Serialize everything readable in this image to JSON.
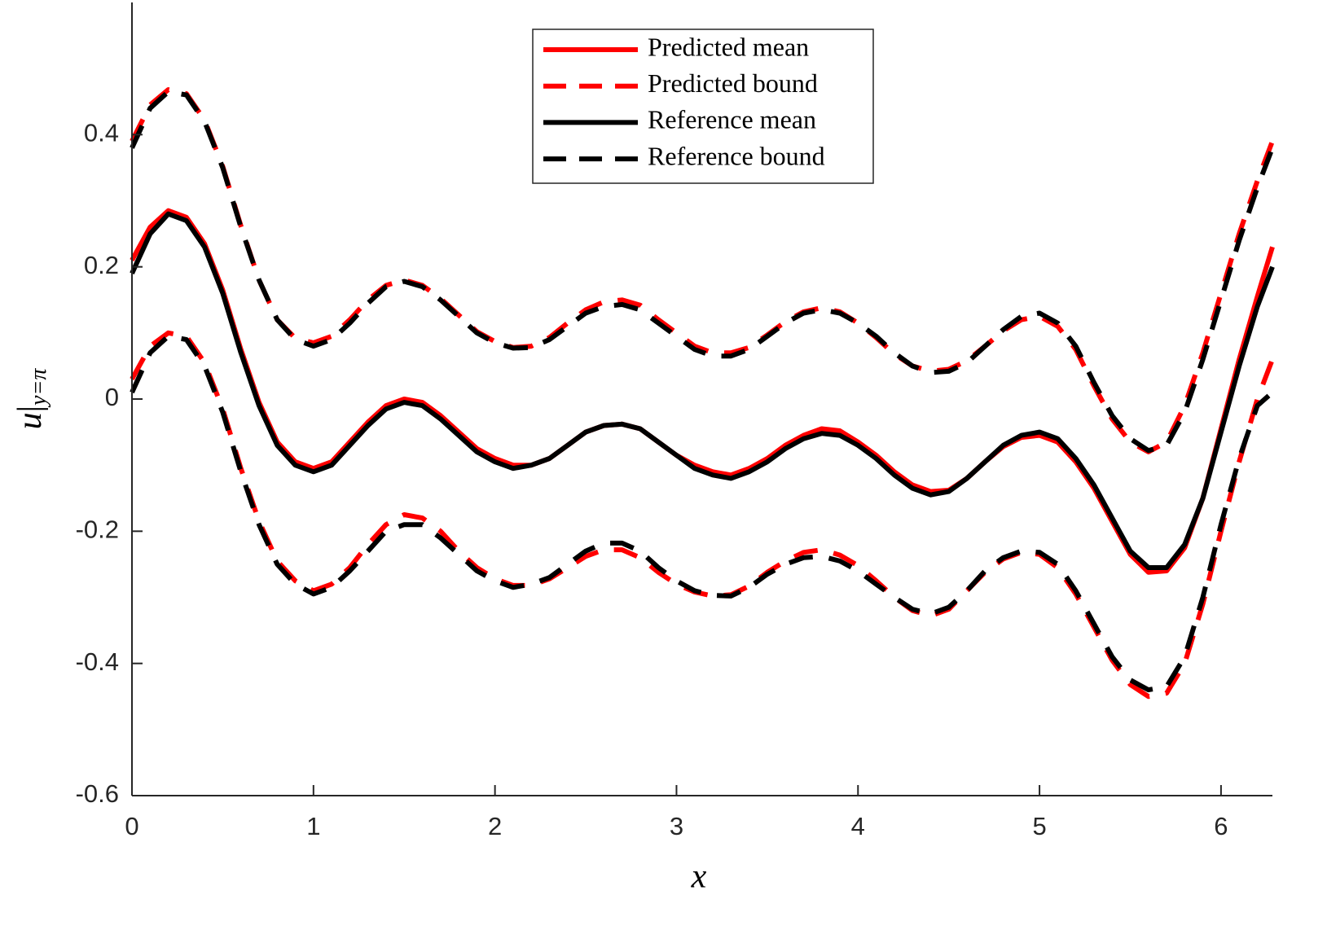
{
  "chart_data": {
    "type": "line",
    "xlabel": "x",
    "ylabel": "u",
    "ylabel_subscript": "y=π",
    "xlim": [
      0,
      6.2832
    ],
    "ylim": [
      -0.6,
      0.6
    ],
    "xticks": [
      0,
      1,
      2,
      3,
      4,
      5,
      6
    ],
    "yticks": [
      -0.6,
      -0.4,
      -0.2,
      0,
      0.2,
      0.4
    ],
    "grid": false,
    "legend": "top-center",
    "x": [
      0,
      0.1,
      0.2,
      0.3,
      0.4,
      0.5,
      0.6,
      0.7,
      0.8,
      0.9,
      1,
      1.1,
      1.2,
      1.3,
      1.4,
      1.5,
      1.6,
      1.7,
      1.8,
      1.9,
      2,
      2.1,
      2.2,
      2.3,
      2.4,
      2.5,
      2.6,
      2.7,
      2.8,
      2.9,
      3,
      3.1,
      3.2,
      3.3,
      3.4,
      3.5,
      3.6,
      3.7,
      3.8,
      3.9,
      4,
      4.1,
      4.2,
      4.3,
      4.4,
      4.5,
      4.6,
      4.7,
      4.8,
      4.9,
      5,
      5.1,
      5.2,
      5.3,
      5.4,
      5.5,
      5.6,
      5.7,
      5.8,
      5.9,
      6,
      6.1,
      6.2,
      6.2832
    ],
    "series": [
      {
        "name": "Predicted mean",
        "color": "#ff0000",
        "dashed": false,
        "values": [
          0.21,
          0.26,
          0.285,
          0.275,
          0.235,
          0.165,
          0.075,
          -0.005,
          -0.065,
          -0.095,
          -0.105,
          -0.095,
          -0.065,
          -0.035,
          -0.01,
          0.0,
          -0.005,
          -0.025,
          -0.05,
          -0.075,
          -0.09,
          -0.1,
          -0.1,
          -0.09,
          -0.07,
          -0.05,
          -0.04,
          -0.038,
          -0.045,
          -0.065,
          -0.085,
          -0.1,
          -0.11,
          -0.115,
          -0.105,
          -0.09,
          -0.07,
          -0.055,
          -0.045,
          -0.048,
          -0.065,
          -0.085,
          -0.11,
          -0.13,
          -0.14,
          -0.138,
          -0.12,
          -0.095,
          -0.072,
          -0.058,
          -0.055,
          -0.065,
          -0.095,
          -0.135,
          -0.185,
          -0.235,
          -0.262,
          -0.26,
          -0.225,
          -0.15,
          -0.045,
          0.06,
          0.155,
          0.23
        ]
      },
      {
        "name": "Predicted bound",
        "color": "#ff0000",
        "dashed": true,
        "upper": [
          0.39,
          0.445,
          0.468,
          0.462,
          0.422,
          0.352,
          0.262,
          0.18,
          0.12,
          0.092,
          0.085,
          0.095,
          0.12,
          0.15,
          0.172,
          0.18,
          0.172,
          0.152,
          0.127,
          0.102,
          0.087,
          0.078,
          0.08,
          0.093,
          0.115,
          0.135,
          0.147,
          0.15,
          0.142,
          0.12,
          0.1,
          0.08,
          0.07,
          0.07,
          0.078,
          0.097,
          0.117,
          0.132,
          0.138,
          0.132,
          0.115,
          0.093,
          0.068,
          0.05,
          0.042,
          0.045,
          0.058,
          0.08,
          0.103,
          0.12,
          0.125,
          0.11,
          0.075,
          0.02,
          -0.03,
          -0.065,
          -0.08,
          -0.065,
          -0.01,
          0.07,
          0.16,
          0.25,
          0.33,
          0.39
        ],
        "lower": [
          0.03,
          0.08,
          0.1,
          0.095,
          0.055,
          -0.015,
          -0.105,
          -0.185,
          -0.245,
          -0.275,
          -0.29,
          -0.28,
          -0.255,
          -0.22,
          -0.19,
          -0.175,
          -0.18,
          -0.2,
          -0.23,
          -0.255,
          -0.272,
          -0.282,
          -0.282,
          -0.272,
          -0.255,
          -0.238,
          -0.228,
          -0.228,
          -0.24,
          -0.262,
          -0.28,
          -0.292,
          -0.298,
          -0.296,
          -0.283,
          -0.262,
          -0.245,
          -0.232,
          -0.228,
          -0.236,
          -0.252,
          -0.275,
          -0.3,
          -0.32,
          -0.328,
          -0.318,
          -0.29,
          -0.262,
          -0.242,
          -0.232,
          -0.235,
          -0.255,
          -0.295,
          -0.345,
          -0.395,
          -0.432,
          -0.45,
          -0.445,
          -0.4,
          -0.31,
          -0.2,
          -0.095,
          0.0,
          0.06
        ]
      },
      {
        "name": "Reference mean",
        "color": "#000000",
        "dashed": false,
        "values": [
          0.19,
          0.25,
          0.28,
          0.27,
          0.23,
          0.16,
          0.07,
          -0.01,
          -0.07,
          -0.1,
          -0.11,
          -0.1,
          -0.07,
          -0.04,
          -0.015,
          -0.005,
          -0.01,
          -0.03,
          -0.055,
          -0.08,
          -0.095,
          -0.105,
          -0.1,
          -0.09,
          -0.07,
          -0.05,
          -0.04,
          -0.038,
          -0.045,
          -0.065,
          -0.085,
          -0.105,
          -0.115,
          -0.12,
          -0.11,
          -0.095,
          -0.075,
          -0.06,
          -0.052,
          -0.055,
          -0.07,
          -0.09,
          -0.115,
          -0.135,
          -0.145,
          -0.14,
          -0.12,
          -0.095,
          -0.07,
          -0.055,
          -0.05,
          -0.06,
          -0.09,
          -0.13,
          -0.18,
          -0.23,
          -0.255,
          -0.255,
          -0.22,
          -0.15,
          -0.05,
          0.05,
          0.14,
          0.2
        ]
      },
      {
        "name": "Reference bound",
        "color": "#000000",
        "dashed": true,
        "upper": [
          0.38,
          0.44,
          0.465,
          0.46,
          0.42,
          0.35,
          0.26,
          0.18,
          0.12,
          0.09,
          0.08,
          0.09,
          0.115,
          0.145,
          0.17,
          0.178,
          0.17,
          0.15,
          0.125,
          0.1,
          0.085,
          0.077,
          0.078,
          0.09,
          0.11,
          0.13,
          0.14,
          0.143,
          0.135,
          0.115,
          0.095,
          0.075,
          0.065,
          0.065,
          0.075,
          0.095,
          0.115,
          0.13,
          0.135,
          0.13,
          0.115,
          0.095,
          0.07,
          0.05,
          0.04,
          0.042,
          0.055,
          0.08,
          0.105,
          0.125,
          0.13,
          0.115,
          0.08,
          0.025,
          -0.025,
          -0.06,
          -0.078,
          -0.07,
          -0.02,
          0.06,
          0.15,
          0.24,
          0.32,
          0.38
        ],
        "lower": [
          0.01,
          0.07,
          0.095,
          0.09,
          0.05,
          -0.02,
          -0.11,
          -0.19,
          -0.25,
          -0.28,
          -0.295,
          -0.285,
          -0.26,
          -0.23,
          -0.2,
          -0.19,
          -0.19,
          -0.21,
          -0.235,
          -0.26,
          -0.275,
          -0.285,
          -0.28,
          -0.27,
          -0.25,
          -0.23,
          -0.218,
          -0.218,
          -0.23,
          -0.255,
          -0.275,
          -0.29,
          -0.297,
          -0.298,
          -0.285,
          -0.265,
          -0.25,
          -0.24,
          -0.238,
          -0.245,
          -0.26,
          -0.28,
          -0.3,
          -0.318,
          -0.325,
          -0.315,
          -0.29,
          -0.26,
          -0.24,
          -0.23,
          -0.232,
          -0.25,
          -0.29,
          -0.34,
          -0.39,
          -0.425,
          -0.44,
          -0.435,
          -0.39,
          -0.3,
          -0.19,
          -0.09,
          -0.01,
          0.01
        ]
      }
    ]
  }
}
